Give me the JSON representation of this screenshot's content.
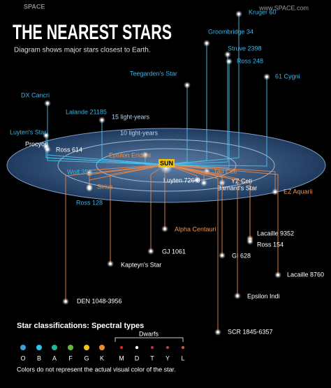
{
  "header": {
    "logo": "SPACE",
    "site": "www.SPACE.com",
    "title": "THE NEAREST STARS",
    "subtitle": "Diagram shows major stars closest to Earth."
  },
  "rings": [
    "15 light-years",
    "10 light-years"
  ],
  "sun": "SUN",
  "stars": [
    "Kruger 60",
    "Groombridge 34",
    "Struve 2398",
    "Ross 248",
    "61 Cygni",
    "Teegarden's Star",
    "DX Cancri",
    "Lalande 21185",
    "Luyten's Star",
    "Procyon",
    "Ross 614",
    "Wolf 359",
    "Ross 128",
    "Epsilon Eridani",
    "Sirius",
    "Tau Ceti",
    "Luyten 726-8",
    "YZ Ceti",
    "Barnard's Star",
    "EZ Aquarii",
    "Alpha Centauri",
    "Lacaille 9352",
    "Ross 154",
    "GJ 1061",
    "GI 628",
    "Kapteyn's Star",
    "Lacaille 8760",
    "Epsilon Indi",
    "DEN 1048-3956",
    "SCR 1845-6357"
  ],
  "legend": {
    "title": "Star classifications: Spectral types",
    "group": "Dwarfs",
    "classes": [
      "O",
      "B",
      "A",
      "F",
      "G",
      "K",
      "M",
      "D",
      "T",
      "Y",
      "L"
    ],
    "note": "Colors do not represent the actual visual color of the star."
  }
}
